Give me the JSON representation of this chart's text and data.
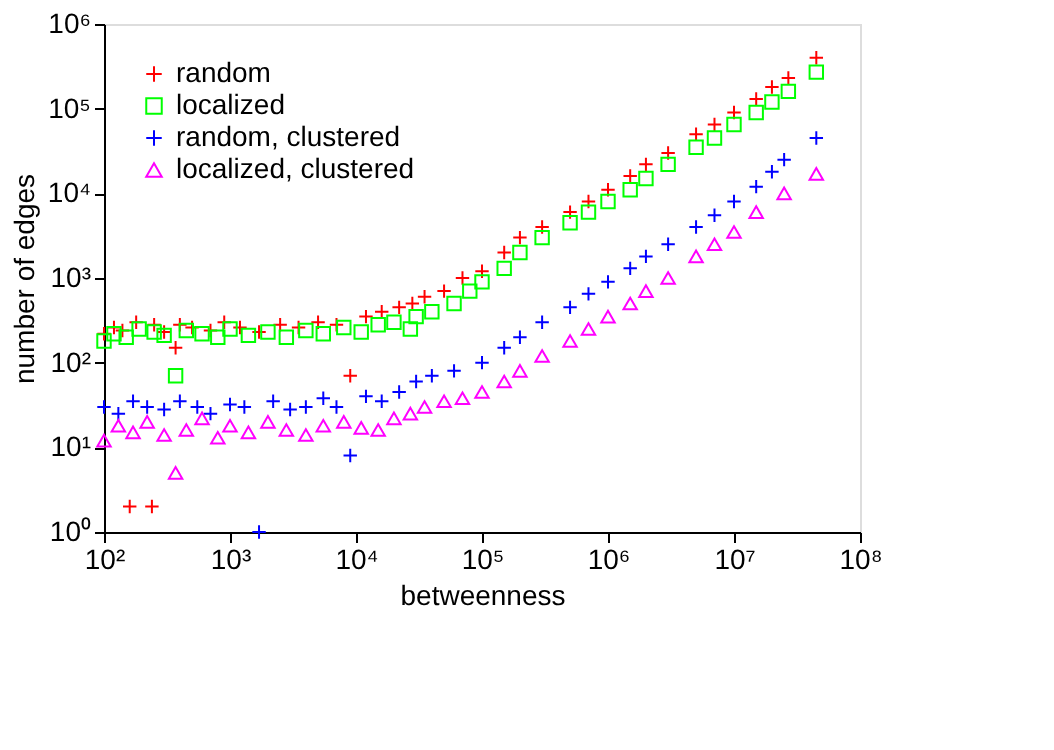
{
  "chart_data": {
    "type": "scatter",
    "xlabel": "betweenness",
    "ylabel": "number of edges",
    "log": "xy",
    "grid": false,
    "legend": "top left",
    "xlim": [
      100,
      100000000
    ],
    "ylim": [
      1,
      1000000
    ],
    "xticks": [
      {
        "value": 100,
        "label": "10²"
      },
      {
        "value": 1000,
        "label": "10³"
      },
      {
        "value": 10000,
        "label": "10⁴"
      },
      {
        "value": 100000,
        "label": "10⁵"
      },
      {
        "value": 1000000,
        "label": "10⁶"
      },
      {
        "value": 10000000,
        "label": "10⁷"
      },
      {
        "value": 100000000,
        "label": "10⁸"
      }
    ],
    "yticks": [
      {
        "value": 1,
        "label": "10⁰"
      },
      {
        "value": 10,
        "label": "10¹"
      },
      {
        "value": 100,
        "label": "10²"
      },
      {
        "value": 1000,
        "label": "10³"
      },
      {
        "value": 10000,
        "label": "10⁴"
      },
      {
        "value": 100000,
        "label": "10⁵"
      },
      {
        "value": 1000000,
        "label": "10⁶"
      }
    ],
    "series": [
      {
        "name": "random",
        "color": "#ff0000",
        "marker": "cross",
        "x": [
          100,
          120,
          140,
          160,
          180,
          240,
          250,
          300,
          370,
          400,
          500,
          700,
          900,
          1200,
          1700,
          2500,
          3500,
          5000,
          7000,
          9000,
          12000,
          16000,
          22000,
          28000,
          35000,
          50000,
          70000,
          100000,
          150000,
          200000,
          300000,
          500000,
          700000,
          1000000,
          1500000,
          2000000,
          3000000,
          5000000,
          7000000,
          10000000,
          15000000,
          20000000,
          27000000,
          45000000
        ],
        "values": [
          220,
          260,
          240,
          2,
          300,
          2,
          280,
          230,
          150,
          280,
          260,
          240,
          300,
          260,
          230,
          280,
          260,
          300,
          280,
          70,
          350,
          400,
          450,
          500,
          600,
          700,
          1000,
          1200,
          2000,
          3000,
          4000,
          6000,
          8000,
          11000,
          16000,
          22000,
          30000,
          50000,
          65000,
          90000,
          130000,
          180000,
          230000,
          400000
        ]
      },
      {
        "name": "localized",
        "color": "#00ff00",
        "marker": "square",
        "x": [
          100,
          120,
          150,
          190,
          250,
          300,
          370,
          450,
          600,
          800,
          1000,
          1400,
          2000,
          2800,
          4000,
          5500,
          8000,
          11000,
          15000,
          20000,
          27000,
          30000,
          40000,
          60000,
          80000,
          100000,
          150000,
          200000,
          300000,
          500000,
          700000,
          1000000,
          1500000,
          2000000,
          3000000,
          5000000,
          7000000,
          10000000,
          15000000,
          20000000,
          27000000,
          45000000
        ],
        "values": [
          180,
          220,
          200,
          250,
          230,
          210,
          70,
          240,
          220,
          200,
          250,
          210,
          230,
          200,
          240,
          220,
          260,
          230,
          280,
          300,
          250,
          350,
          400,
          500,
          700,
          900,
          1300,
          2000,
          3000,
          4500,
          6000,
          8000,
          11000,
          15000,
          22000,
          35000,
          45000,
          65000,
          90000,
          120000,
          160000,
          270000
        ]
      },
      {
        "name": "random, clustered",
        "color": "#0000ff",
        "marker": "cross",
        "x": [
          100,
          130,
          170,
          220,
          300,
          400,
          550,
          700,
          1000,
          1300,
          1700,
          2200,
          3000,
          4000,
          5500,
          7000,
          9000,
          12000,
          16000,
          22000,
          30000,
          40000,
          60000,
          100000,
          150000,
          200000,
          300000,
          500000,
          700000,
          1000000,
          1500000,
          2000000,
          3000000,
          5000000,
          7000000,
          10000000,
          15000000,
          20000000,
          25000000,
          45000000
        ],
        "values": [
          30,
          25,
          35,
          30,
          28,
          35,
          30,
          25,
          32,
          30,
          1,
          35,
          28,
          30,
          38,
          30,
          8,
          40,
          35,
          45,
          60,
          70,
          80,
          100,
          150,
          200,
          300,
          450,
          650,
          900,
          1300,
          1800,
          2500,
          4000,
          5500,
          8000,
          12000,
          18000,
          25000,
          45000
        ]
      },
      {
        "name": "localized, clustered",
        "color": "#ff00ff",
        "marker": "triangle",
        "x": [
          100,
          130,
          170,
          220,
          300,
          370,
          450,
          600,
          800,
          1000,
          1400,
          2000,
          2800,
          4000,
          5500,
          8000,
          11000,
          15000,
          20000,
          27000,
          35000,
          50000,
          70000,
          100000,
          150000,
          200000,
          300000,
          500000,
          700000,
          1000000,
          1500000,
          2000000,
          3000000,
          5000000,
          7000000,
          10000000,
          15000000,
          25000000,
          45000000
        ],
        "values": [
          12,
          18,
          15,
          20,
          14,
          5,
          16,
          22,
          13,
          18,
          15,
          20,
          16,
          14,
          18,
          20,
          17,
          16,
          22,
          25,
          30,
          35,
          38,
          45,
          60,
          80,
          120,
          180,
          250,
          350,
          500,
          700,
          1000,
          1800,
          2500,
          3500,
          6000,
          10000,
          17000
        ]
      }
    ]
  }
}
